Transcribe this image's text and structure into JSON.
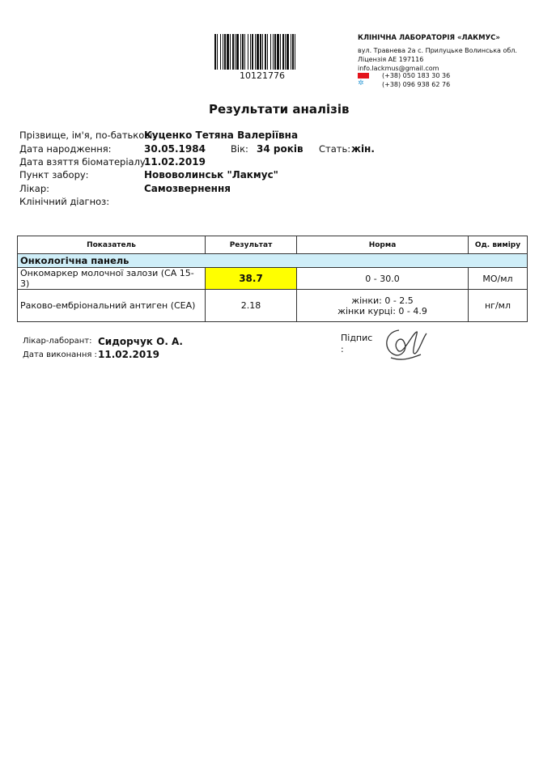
{
  "barcode": {
    "number": "10121776"
  },
  "lab": {
    "name": "КЛІНІЧНА ЛАБОРАТОРІЯ «ЛАКМУС»",
    "address": "вул. Травнева 2а с. Прилуцьке Волинська обл.",
    "license": "Ліцензія АЕ 197116",
    "email": "info.lackmus@gmail.com",
    "phone1": "(+38) 050 183 30 36",
    "phone2": "(+38) 096 938 62 76",
    "phone1_icon": "vodafone-icon",
    "phone2_icon": "kyivstar-icon"
  },
  "title": "Результати аналізів",
  "patient": {
    "name_label": "Прізвище, ім'я, по-батькові:",
    "name": "Куценко Тетяна Валеріївна",
    "dob_label": "Дата народження:",
    "dob": "30.05.1984",
    "age_label": "Вік:",
    "age": "34 років",
    "sex_label": "Стать:",
    "sex": "жін.",
    "sample_date_label": "Дата взяття біоматеріалу:",
    "sample_date": "11.02.2019",
    "point_label": "Пункт забору:",
    "point": "Нововолинськ \"Лакмус\"",
    "doctor_label": "Лікар:",
    "doctor": "Самозвернення",
    "diagnosis_label": "Клінічний діагноз:"
  },
  "table": {
    "headers": [
      "Показатель",
      "Результат",
      "Норма",
      "Од. виміру"
    ],
    "section": "Онкологічна панель",
    "rows": [
      {
        "name": "Онкомаркер молочної залози (СА 15-3)",
        "result": "38.7",
        "norm1": "0 - 30.0",
        "norm2": "",
        "unit": "МО/мл",
        "flag_color": "#ffff00"
      },
      {
        "name": "Раково-ембріональний антиген (СЕА)",
        "result": "2.18",
        "norm1": "жінки: 0 - 2.5",
        "norm2": "жінки курці: 0 - 4.9",
        "unit": "нг/мл"
      }
    ]
  },
  "footer": {
    "lab_doctor_label": "Лікар-лаборант:",
    "lab_doctor": "Сидорчук О. А.",
    "done_date_label": "Дата виконання :",
    "done_date": "11.02.2019",
    "signature_label": "Підпис",
    "signature_colon": ":"
  }
}
